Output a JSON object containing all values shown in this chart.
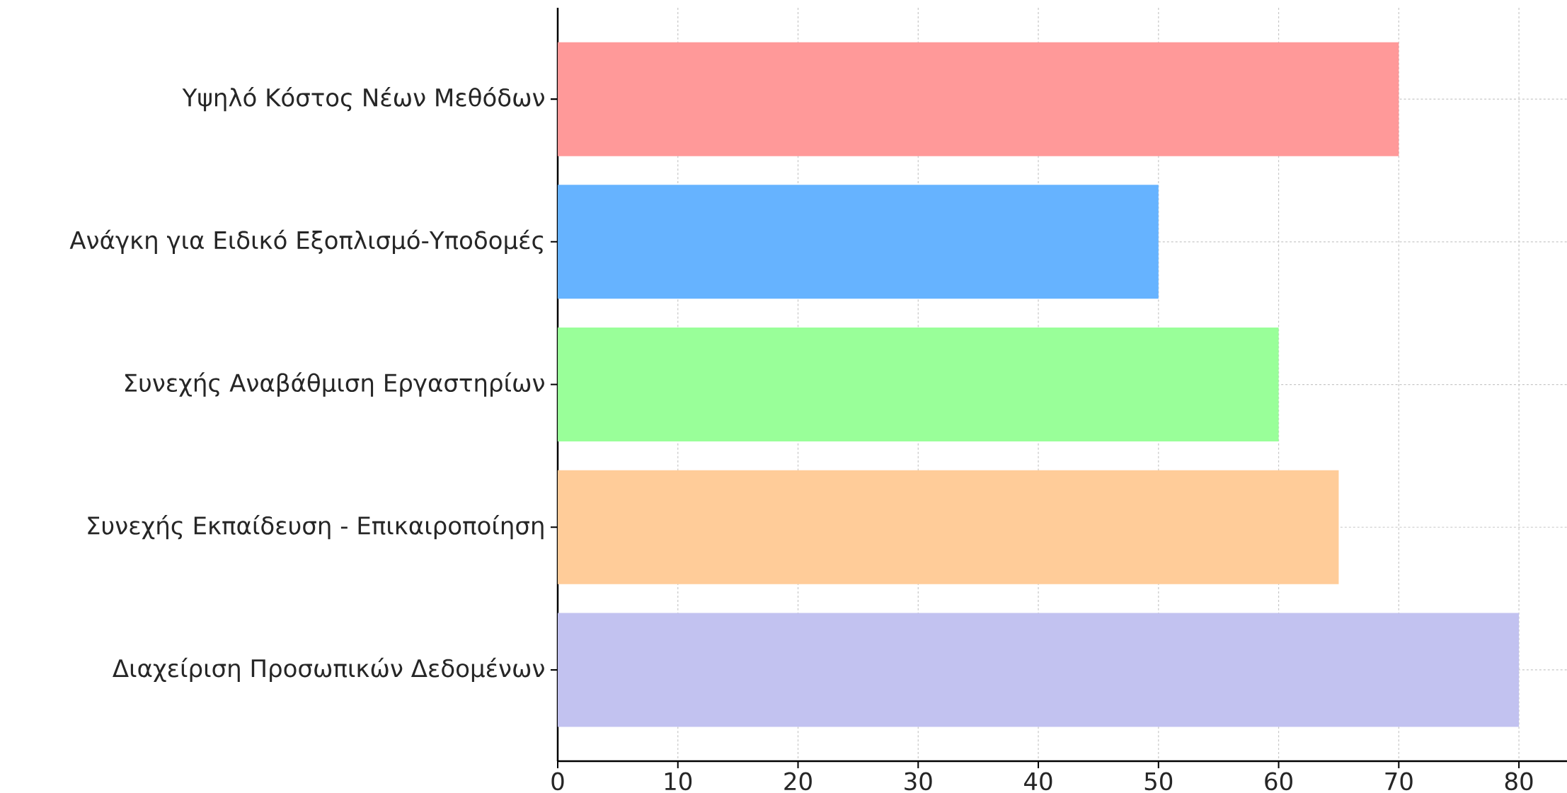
{
  "chart_data": {
    "type": "bar",
    "orientation": "horizontal",
    "categories": [
      "Υψηλό Κόστος Νέων Μεθόδων",
      "Ανάγκη για Ειδικό Εξοπλισμό-Υποδομές",
      "Συνεχής Αναβάθμιση Εργαστηρίων",
      "Συνεχής Εκπαίδευση - Επικαιροποίηση",
      "Διαχείριση Προσωπικών Δεδομένων"
    ],
    "values": [
      70,
      50,
      60,
      65,
      80
    ],
    "colors": [
      "#ff9999",
      "#66b3ff",
      "#99ff99",
      "#ffcc99",
      "#c2c2f0"
    ],
    "xlim": [
      0,
      84
    ],
    "xticks": [
      0,
      10,
      20,
      30,
      40,
      50,
      60,
      70,
      80
    ],
    "grid": true
  }
}
